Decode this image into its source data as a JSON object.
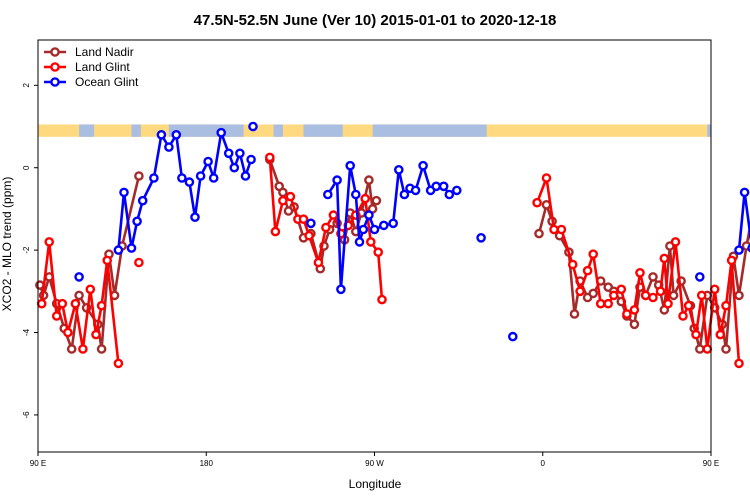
{
  "chart_data": {
    "type": "line",
    "title": "47.5N-52.5N June (Ver 10)   2015-01-01 to 2020-12-18",
    "xlabel": "Longitude",
    "ylabel": "XCO2 - MLO trend (ppm)",
    "xlim": [
      90,
      450
    ],
    "ylim": [
      -6.9,
      3.1
    ],
    "x_ticks": [
      {
        "value": 90,
        "label": "90 E"
      },
      {
        "value": 180,
        "label": "180"
      },
      {
        "value": 270,
        "label": "90 W"
      },
      {
        "value": 360,
        "label": "0"
      },
      {
        "value": 450,
        "label": "90 E"
      },
      {
        "value": 540,
        "label": "180"
      }
    ],
    "y_ticks": [
      {
        "value": 2,
        "label": "2"
      },
      {
        "value": 0,
        "label": "0"
      },
      {
        "value": -2,
        "label": "-2"
      },
      {
        "value": -4,
        "label": "-4"
      },
      {
        "value": -6,
        "label": "-6"
      }
    ],
    "legend_position": "top-left",
    "land_sea_band": {
      "y_min": 0.75,
      "y_max": 1.05,
      "land_color": "#FFD97F",
      "ocean_color": "#A9BEE0"
    },
    "series": [
      {
        "name": "Land Nadir",
        "color": "#A52A2A",
        "segments": [
          [
            [
              91,
              -2.85
            ],
            [
              93,
              -3.1
            ],
            [
              96,
              -2.65
            ],
            [
              100,
              -3.3
            ],
            [
              104,
              -3.9
            ],
            [
              108,
              -4.4
            ],
            [
              112,
              -3.1
            ],
            [
              116,
              -3.4
            ],
            [
              122,
              -3.8
            ],
            [
              124,
              -4.4
            ],
            [
              128,
              -2.1
            ],
            [
              131,
              -3.1
            ],
            [
              135,
              -1.9
            ],
            [
              144,
              -0.2
            ]
          ],
          [
            [
              214,
              0.2
            ],
            [
              219,
              -0.45
            ],
            [
              221,
              -0.6
            ],
            [
              224,
              -1.05
            ],
            [
              227,
              -0.95
            ],
            [
              232,
              -1.7
            ],
            [
              236,
              -1.6
            ],
            [
              241,
              -2.45
            ],
            [
              243,
              -1.9
            ],
            [
              246,
              -1.5
            ],
            [
              250,
              -1.35
            ],
            [
              254,
              -1.75
            ],
            [
              257,
              -1.1
            ],
            [
              260,
              -1.55
            ],
            [
              263,
              -1.1
            ],
            [
              267,
              -0.3
            ],
            [
              269,
              -1.0
            ],
            [
              271,
              -0.8
            ]
          ],
          [
            [
              358,
              -1.6
            ],
            [
              362,
              -0.9
            ],
            [
              365,
              -1.3
            ],
            [
              369,
              -1.65
            ],
            [
              374,
              -2.05
            ],
            [
              377,
              -3.55
            ],
            [
              380,
              -2.75
            ],
            [
              384,
              -3.15
            ],
            [
              387,
              -3.05
            ],
            [
              391,
              -2.75
            ],
            [
              395,
              -2.9
            ],
            [
              398,
              -3.0
            ],
            [
              402,
              -3.25
            ],
            [
              405,
              -3.6
            ],
            [
              409,
              -3.8
            ],
            [
              412,
              -2.9
            ],
            [
              415,
              -3.1
            ],
            [
              419,
              -2.65
            ],
            [
              422,
              -2.85
            ],
            [
              425,
              -3.45
            ],
            [
              428,
              -1.9
            ],
            [
              430,
              -3.1
            ],
            [
              434,
              -2.75
            ],
            [
              439,
              -3.35
            ],
            [
              441,
              -3.9
            ],
            [
              444,
              -4.4
            ],
            [
              448,
              -3.1
            ],
            [
              452,
              -3.4
            ],
            [
              456,
              -3.8
            ],
            [
              458,
              -4.4
            ],
            [
              462,
              -2.15
            ],
            [
              465,
              -3.1
            ],
            [
              469,
              -1.9
            ],
            [
              476,
              -0.2
            ]
          ]
        ]
      },
      {
        "name": "Land Glint",
        "color": "#FF0000",
        "segments": [
          [
            [
              92,
              -3.3
            ],
            [
              96,
              -1.8
            ],
            [
              100,
              -3.6
            ],
            [
              103,
              -3.3
            ],
            [
              106,
              -4.0
            ],
            [
              110,
              -3.3
            ],
            [
              114,
              -4.4
            ],
            [
              118,
              -2.95
            ],
            [
              121,
              -4.05
            ],
            [
              124,
              -3.35
            ],
            [
              127,
              -2.25
            ],
            [
              133,
              -4.75
            ]
          ],
          [
            [
              144,
              -2.3
            ]
          ],
          [
            [
              214,
              0.25
            ],
            [
              217,
              -1.55
            ],
            [
              221,
              -0.8
            ],
            [
              225,
              -0.7
            ],
            [
              229,
              -1.25
            ],
            [
              232,
              -1.25
            ],
            [
              235,
              -1.65
            ],
            [
              240,
              -2.3
            ],
            [
              244,
              -1.45
            ],
            [
              248,
              -1.15
            ],
            [
              252,
              -1.6
            ],
            [
              256,
              -1.4
            ],
            [
              260,
              -1.15
            ],
            [
              265,
              -0.75
            ],
            [
              268,
              -1.8
            ],
            [
              272,
              -2.05
            ],
            [
              274,
              -3.2
            ]
          ],
          [
            [
              357,
              -0.85
            ],
            [
              362,
              -0.25
            ],
            [
              366,
              -1.5
            ],
            [
              370,
              -1.5
            ],
            [
              376,
              -2.35
            ],
            [
              380,
              -3.0
            ],
            [
              384,
              -2.5
            ],
            [
              387,
              -2.1
            ],
            [
              391,
              -3.3
            ],
            [
              395,
              -3.3
            ],
            [
              398,
              -3.1
            ],
            [
              402,
              -2.95
            ],
            [
              405,
              -3.55
            ],
            [
              409,
              -3.45
            ],
            [
              412,
              -2.55
            ],
            [
              415,
              -3.1
            ],
            [
              419,
              -3.15
            ],
            [
              423,
              -3.0
            ],
            [
              425,
              -2.2
            ],
            [
              427,
              -3.3
            ],
            [
              431,
              -1.8
            ],
            [
              435,
              -3.6
            ],
            [
              438,
              -3.35
            ],
            [
              442,
              -4.05
            ],
            [
              445,
              -3.1
            ],
            [
              448,
              -4.4
            ],
            [
              452,
              -2.95
            ],
            [
              455,
              -4.05
            ],
            [
              458,
              -3.35
            ],
            [
              461,
              -2.25
            ],
            [
              465,
              -4.75
            ]
          ],
          [
            [
              476,
              -2.3
            ]
          ]
        ]
      },
      {
        "name": "Ocean Glint",
        "color": "#0000FF",
        "segments": [
          [
            [
              112,
              -2.65
            ]
          ],
          [
            [
              133,
              -2.0
            ],
            [
              136,
              -0.6
            ],
            [
              140,
              -1.95
            ],
            [
              143,
              -1.3
            ],
            [
              146,
              -0.8
            ],
            [
              152,
              -0.25
            ],
            [
              156,
              0.8
            ],
            [
              160,
              0.5
            ],
            [
              164,
              0.8
            ],
            [
              167,
              -0.25
            ],
            [
              171,
              -0.35
            ],
            [
              174,
              -1.2
            ],
            [
              177,
              -0.2
            ],
            [
              181,
              0.15
            ],
            [
              184,
              -0.25
            ],
            [
              188,
              0.85
            ],
            [
              192,
              0.35
            ],
            [
              195,
              0.0
            ],
            [
              198,
              0.35
            ],
            [
              201,
              -0.2
            ],
            [
              204,
              0.2
            ]
          ],
          [
            [
              205,
              1.0
            ]
          ],
          [
            [
              236,
              -1.35
            ]
          ],
          [
            [
              245,
              -0.65
            ],
            [
              250,
              -0.3
            ],
            [
              252,
              -2.95
            ],
            [
              257,
              0.05
            ],
            [
              260,
              -0.65
            ],
            [
              262,
              -1.8
            ],
            [
              264,
              -1.5
            ],
            [
              267,
              -1.15
            ],
            [
              270,
              -1.5
            ],
            [
              275,
              -1.4
            ],
            [
              280,
              -1.35
            ],
            [
              283,
              -0.05
            ],
            [
              286,
              -0.65
            ],
            [
              289,
              -0.5
            ],
            [
              292,
              -0.55
            ],
            [
              296,
              0.05
            ],
            [
              300,
              -0.55
            ],
            [
              303,
              -0.45
            ],
            [
              307,
              -0.45
            ],
            [
              310,
              -0.65
            ],
            [
              314,
              -0.55
            ]
          ],
          [
            [
              327,
              -1.7
            ]
          ],
          [
            [
              344,
              -4.1
            ]
          ],
          [
            [
              444,
              -2.65
            ]
          ],
          [
            [
              465,
              -2.0
            ],
            [
              468,
              -0.6
            ],
            [
              472,
              -1.95
            ],
            [
              475,
              -1.3
            ],
            [
              478,
              -0.8
            ],
            [
              484,
              -0.25
            ],
            [
              488,
              0.8
            ],
            [
              492,
              0.5
            ]
          ]
        ]
      }
    ]
  }
}
